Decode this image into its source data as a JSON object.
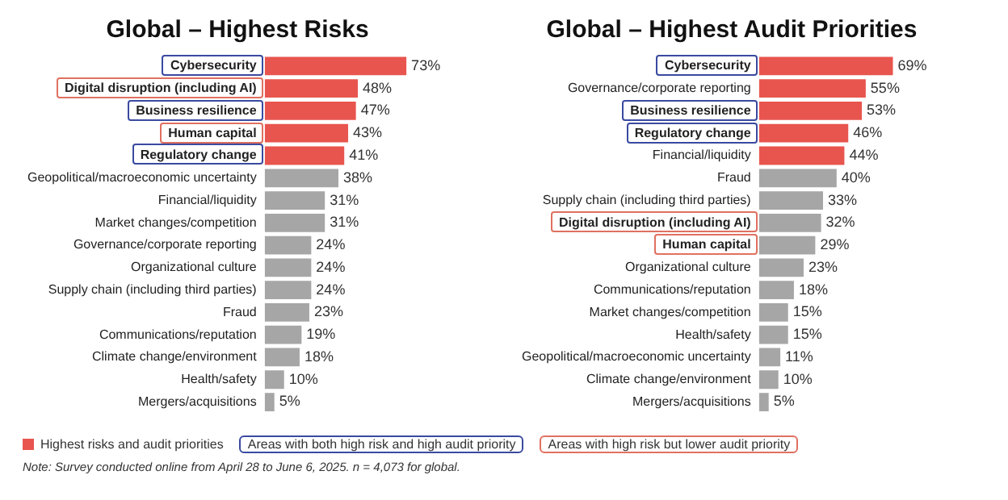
{
  "chart_data": [
    {
      "type": "bar",
      "orientation": "horizontal",
      "title": "Global – Highest Risks",
      "categories": [
        "Cybersecurity",
        "Digital disruption (including AI)",
        "Business resilience",
        "Human capital",
        "Regulatory change",
        "Geopolitical/macroeconomic uncertainty",
        "Financial/liquidity",
        "Market changes/competition",
        "Governance/corporate reporting",
        "Organizational culture",
        "Supply chain (including third parties)",
        "Fraud",
        "Communications/reputation",
        "Climate change/environment",
        "Health/safety",
        "Mergers/acquisitions"
      ],
      "values": [
        73,
        48,
        47,
        43,
        41,
        38,
        31,
        31,
        24,
        24,
        24,
        23,
        19,
        18,
        10,
        5
      ],
      "value_labels": [
        "73%",
        "48%",
        "47%",
        "43%",
        "41%",
        "38%",
        "31%",
        "31%",
        "24%",
        "24%",
        "24%",
        "23%",
        "19%",
        "18%",
        "10%",
        "5%"
      ],
      "colors": [
        "#e8554e",
        "#e8554e",
        "#e8554e",
        "#e8554e",
        "#e8554e",
        "#a6a6a6",
        "#a6a6a6",
        "#a6a6a6",
        "#a6a6a6",
        "#a6a6a6",
        "#a6a6a6",
        "#a6a6a6",
        "#a6a6a6",
        "#a6a6a6",
        "#a6a6a6",
        "#a6a6a6"
      ],
      "annotations": [
        "Highest risks and audit priorities",
        "Areas with both high risk and high audit priority",
        "Areas with high risk but lower audit priority",
        "Note: Survey conducted online from April 28 to June 6, 2025. n = 4,073 for global."
      ]
    },
    {
      "type": "bar",
      "orientation": "horizontal",
      "title": "Global – Highest Audit Priorities",
      "categories": [
        "Cybersecurity",
        "Governance/corporate reporting",
        "Business resilience",
        "Regulatory change",
        "Financial/liquidity",
        "Fraud",
        "Supply chain (including third parties)",
        "Digital disruption (including AI)",
        "Human capital",
        "Organizational culture",
        "Communications/reputation",
        "Market changes/competition",
        "Health/safety",
        "Geopolitical/macroeconomic uncertainty",
        "Climate change/environment",
        "Mergers/acquisitions"
      ],
      "values": [
        69,
        55,
        53,
        46,
        44,
        40,
        33,
        32,
        29,
        23,
        18,
        15,
        15,
        11,
        10,
        5
      ],
      "value_labels": [
        "69%",
        "55%",
        "53%",
        "46%",
        "44%",
        "40%",
        "33%",
        "32%",
        "29%",
        "23%",
        "18%",
        "15%",
        "15%",
        "11%",
        "10%",
        "5%"
      ],
      "colors": [
        "#e8554e",
        "#e8554e",
        "#e8554e",
        "#e8554e",
        "#e8554e",
        "#a6a6a6",
        "#a6a6a6",
        "#a6a6a6",
        "#a6a6a6",
        "#a6a6a6",
        "#a6a6a6",
        "#a6a6a6",
        "#a6a6a6",
        "#a6a6a6",
        "#a6a6a6",
        "#a6a6a6"
      ]
    }
  ]
}
